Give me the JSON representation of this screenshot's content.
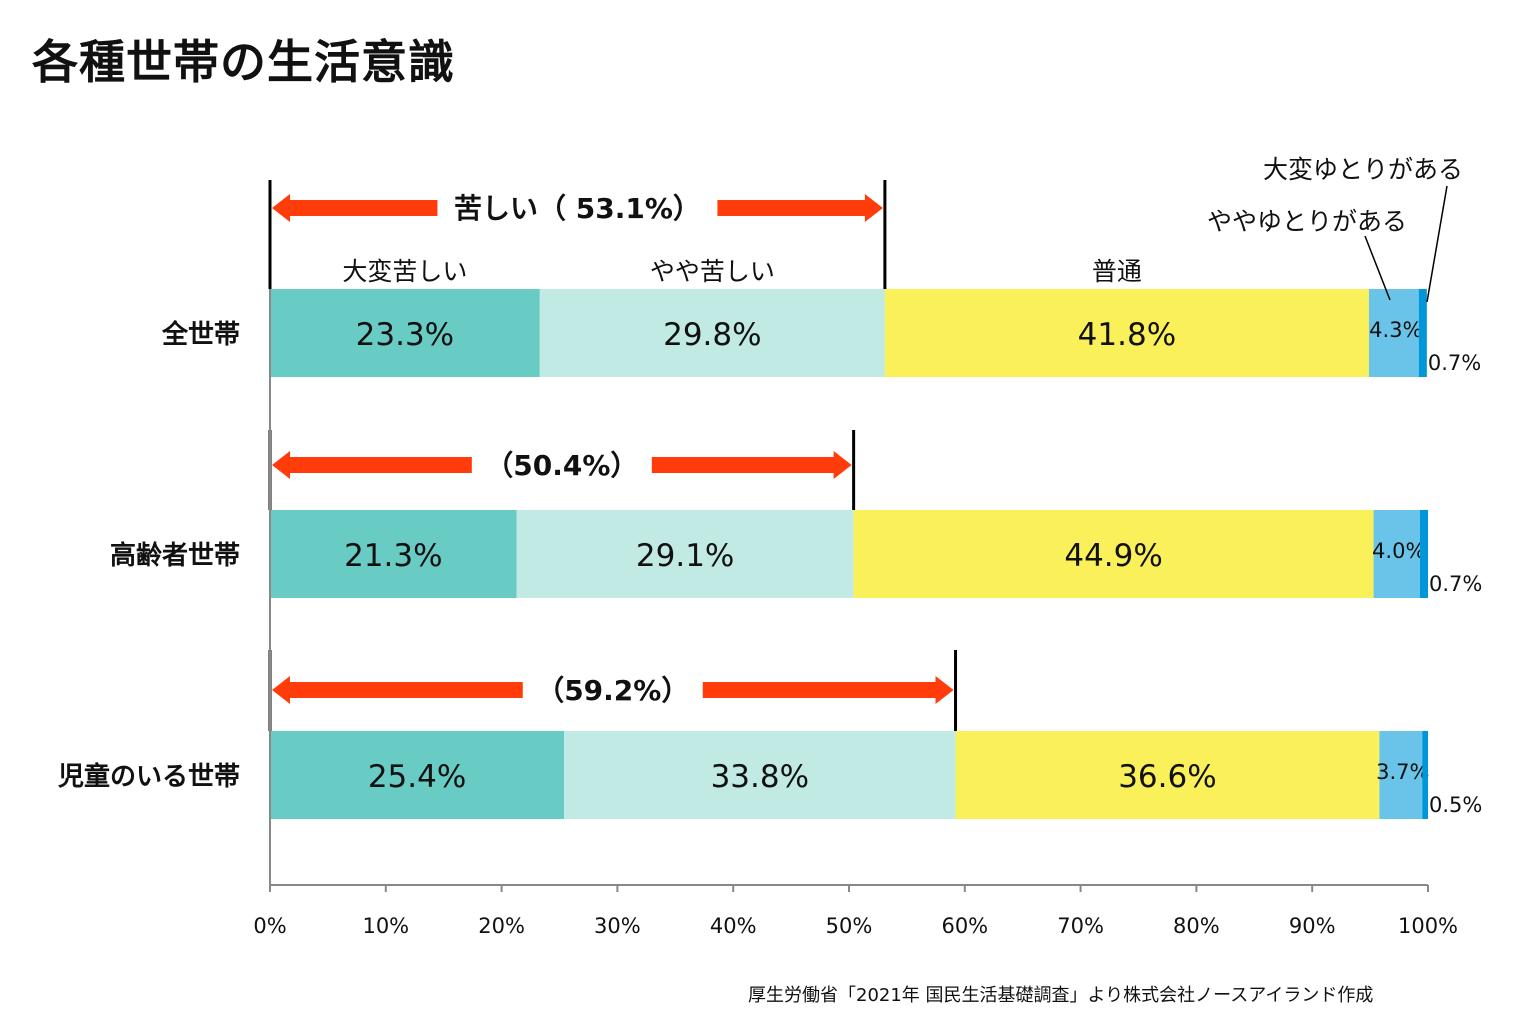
{
  "title": "各種世帯の生活意識",
  "source": "厚生労働省「2021年 国民生活基礎調査」より株式会社ノースアイランド作成",
  "chart_data": {
    "type": "bar",
    "orientation": "horizontal-stacked-100",
    "title": "各種世帯の生活意識",
    "categories": [
      "全世帯",
      "高齢者世帯",
      "児童のいる世帯"
    ],
    "series": [
      {
        "name": "大変苦しい",
        "color": "#68CBC4",
        "values": [
          23.3,
          21.3,
          25.4
        ]
      },
      {
        "name": "やや苦しい",
        "color": "#C2EAE5",
        "values": [
          29.8,
          29.1,
          33.8
        ]
      },
      {
        "name": "普通",
        "color": "#FAF05A",
        "values": [
          41.8,
          44.9,
          36.6
        ]
      },
      {
        "name": "ややゆとりがある",
        "color": "#6AC4EA",
        "values": [
          4.3,
          4.0,
          3.7
        ]
      },
      {
        "name": "大変ゆとりがある",
        "color": "#0096D8",
        "values": [
          0.7,
          0.7,
          0.5
        ]
      }
    ],
    "value_labels": [
      [
        "23.3%",
        "29.8%",
        "41.8%",
        "4.3%",
        "0.7%"
      ],
      [
        "21.3%",
        "29.1%",
        "44.9%",
        "4.0%",
        "0.7%"
      ],
      [
        "25.4%",
        "33.8%",
        "36.6%",
        "3.7%",
        "0.5%"
      ]
    ],
    "bracket_annotations": [
      {
        "label": "苦しい（ 53.1%）",
        "value": 53.1
      },
      {
        "label": "（50.4%）",
        "value": 50.4
      },
      {
        "label": "（59.2%）",
        "value": 59.2
      }
    ],
    "arrow_color": "#FF3C0A",
    "xlim": [
      0,
      100
    ],
    "xticks": [
      "0%",
      "10%",
      "20%",
      "30%",
      "40%",
      "50%",
      "60%",
      "70%",
      "80%",
      "90%",
      "100%"
    ],
    "grid": false,
    "legend": "inline-labels-above-first-bar"
  }
}
